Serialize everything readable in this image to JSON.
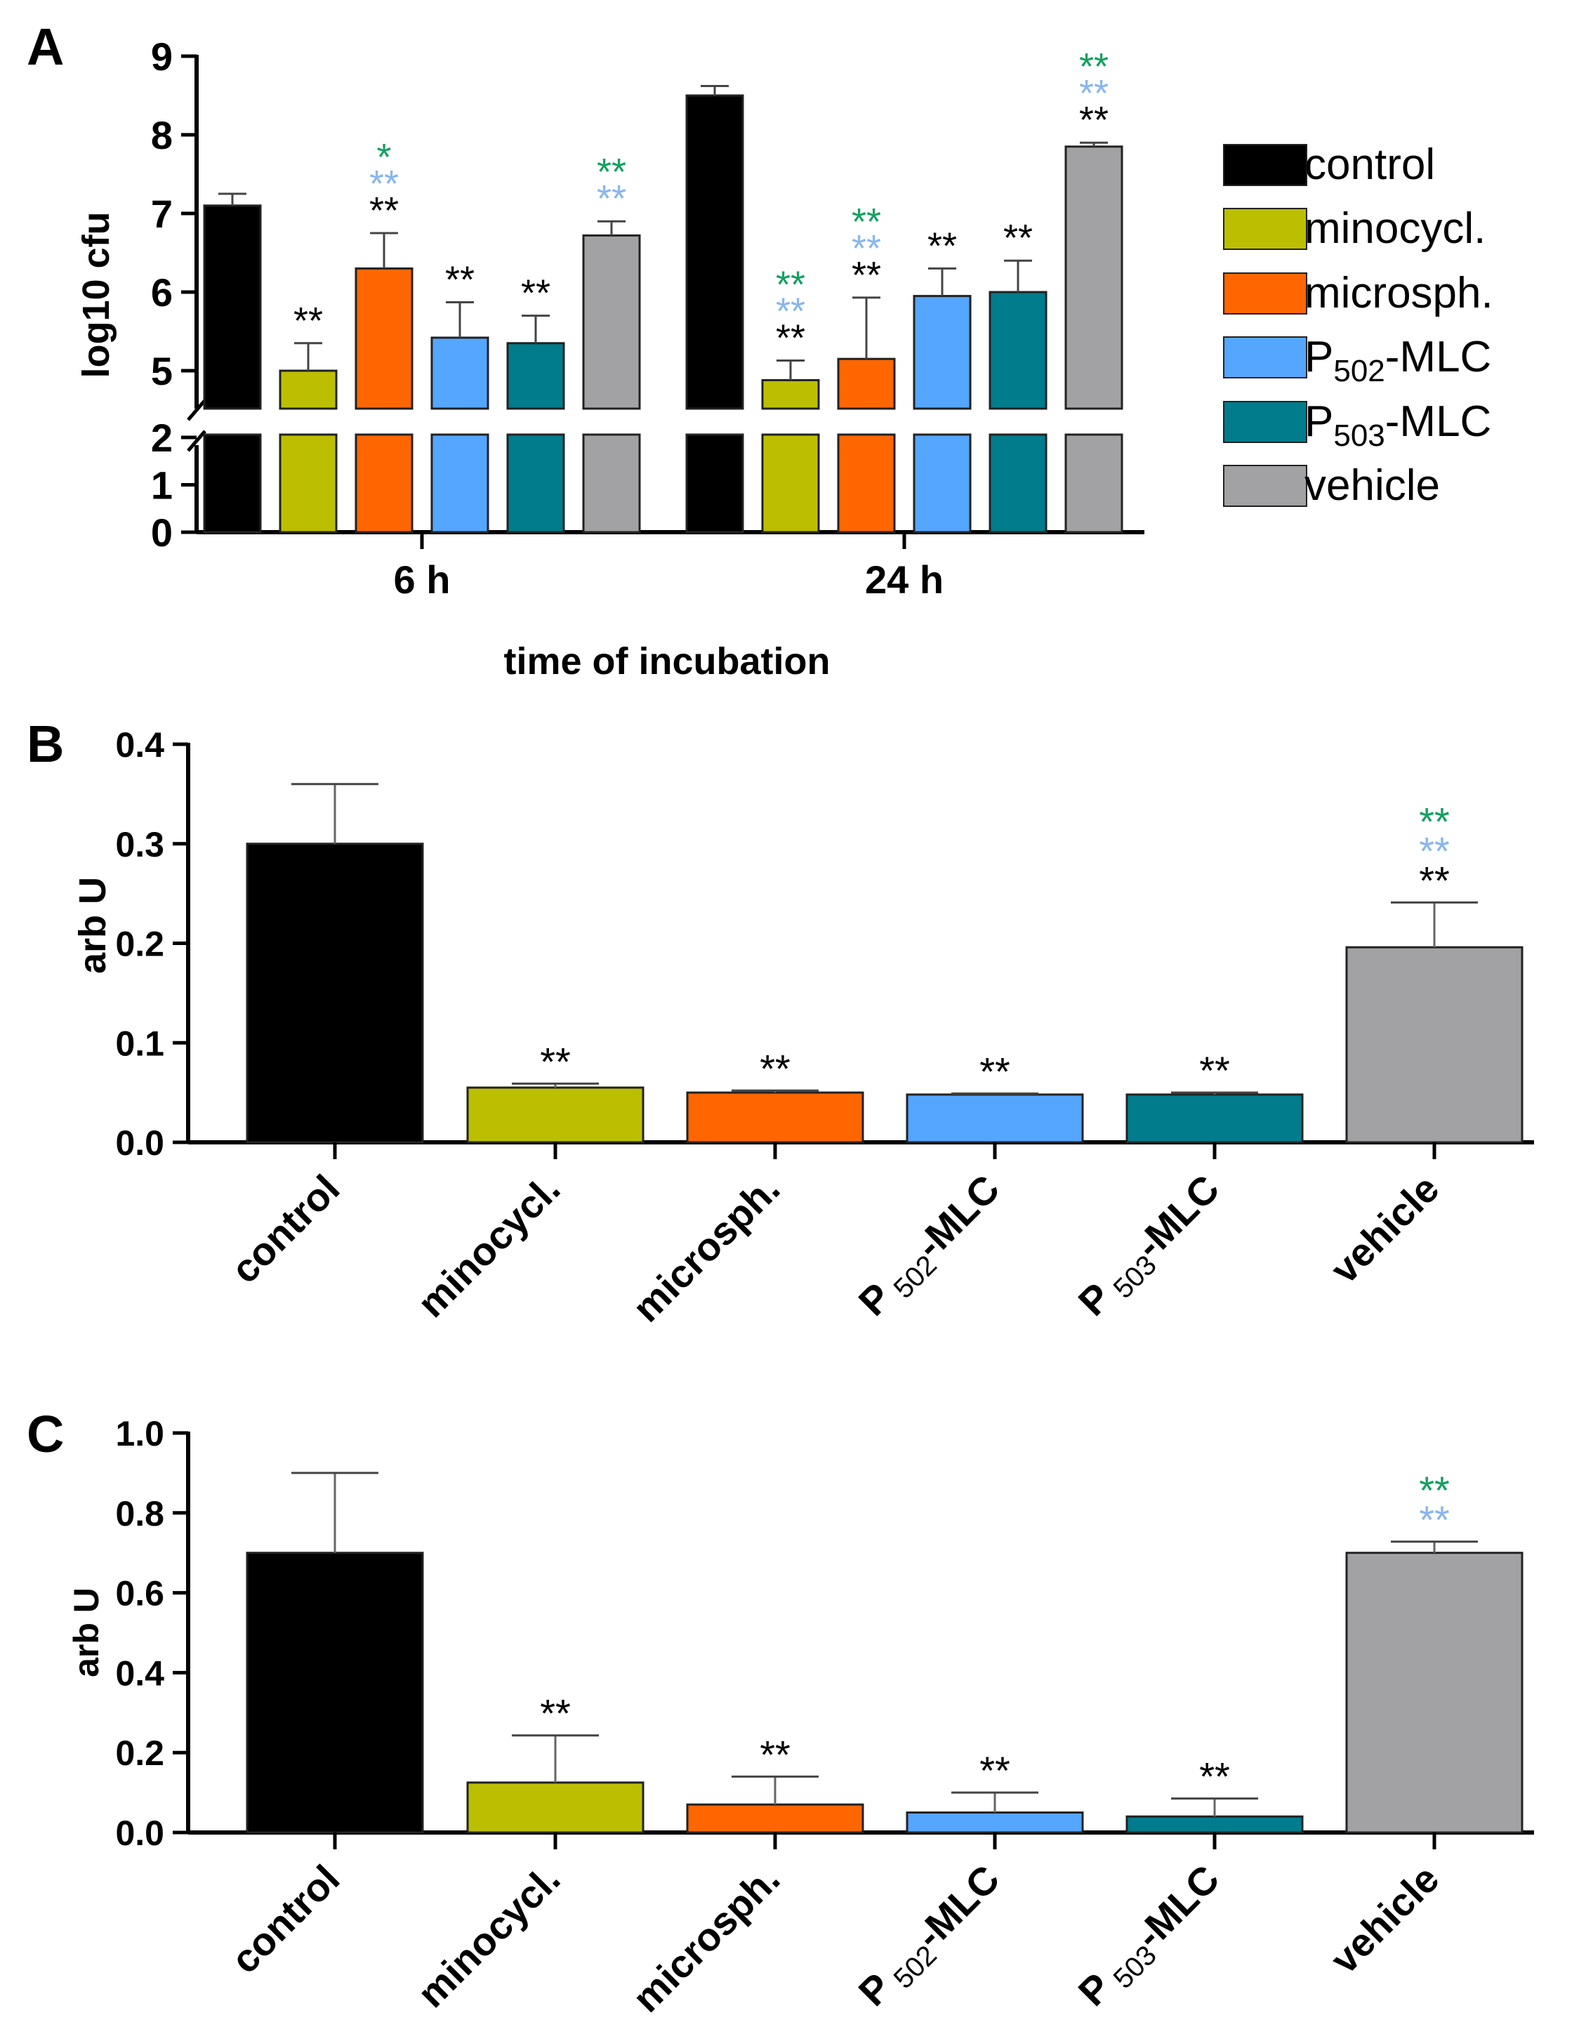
{
  "colors": {
    "control": "#000000",
    "minocycl": "#bcbf00",
    "microsph": "#ff6600",
    "p502": "#55a6ff",
    "p503": "#007c8c",
    "vehicle": "#a2a2a4",
    "star_black": "#000000",
    "star_blue": "#89b6ec",
    "star_green": "#13a060"
  },
  "legend": [
    {
      "label": "control",
      "color_key": "control"
    },
    {
      "label": "minocycl.",
      "color_key": "minocycl"
    },
    {
      "label": "microsph.",
      "color_key": "microsph"
    },
    {
      "label": "P",
      "sub": "502",
      "suffix": "-MLC",
      "color_key": "p502"
    },
    {
      "label": "P",
      "sub": "503",
      "suffix": "-MLC",
      "color_key": "p503"
    },
    {
      "label": "vehicle",
      "color_key": "vehicle"
    }
  ],
  "chart_data": [
    {
      "panel": "A",
      "type": "bar",
      "ylabel": "log10 cfu",
      "xlabel": "time of incubation",
      "categories": [
        "6 h",
        "24 h"
      ],
      "y_axis_break": {
        "lower": [
          0,
          2
        ],
        "upper": [
          4.5,
          9
        ]
      },
      "yticks_lower": [
        "0",
        "1",
        "2"
      ],
      "yticks_upper": [
        "5",
        "6",
        "7",
        "8",
        "9"
      ],
      "series": [
        {
          "name": "control",
          "color_key": "control",
          "values": [
            7.1,
            8.5
          ],
          "errors": [
            0.15,
            0.12
          ],
          "stars": [
            [],
            []
          ]
        },
        {
          "name": "minocycl.",
          "color_key": "minocycl",
          "values": [
            5.0,
            4.88
          ],
          "errors": [
            0.35,
            0.25
          ],
          "stars": [
            [
              "star_black"
            ],
            [
              "star_green",
              "star_blue",
              "star_black"
            ]
          ]
        },
        {
          "name": "microsph.",
          "color_key": "microsph",
          "values": [
            6.3,
            5.15
          ],
          "errors": [
            0.45,
            0.78
          ],
          "stars": [
            [
              "star_green",
              "star_blue",
              "star_black"
            ],
            [
              "star_green",
              "star_blue",
              "star_black"
            ]
          ]
        },
        {
          "name": "P502-MLC",
          "color_key": "p502",
          "values": [
            5.42,
            5.95
          ],
          "errors": [
            0.45,
            0.35
          ],
          "stars": [
            [
              "star_black"
            ],
            [
              "star_black"
            ]
          ]
        },
        {
          "name": "P503-MLC",
          "color_key": "p503",
          "values": [
            5.35,
            6.0
          ],
          "errors": [
            0.35,
            0.4
          ],
          "stars": [
            [
              "star_black"
            ],
            [
              "star_black"
            ]
          ]
        },
        {
          "name": "vehicle",
          "color_key": "vehicle",
          "values": [
            6.72,
            7.85
          ],
          "errors": [
            0.18,
            0.05
          ],
          "stars": [
            [
              "star_green",
              "star_blue"
            ],
            [
              "star_green",
              "star_blue",
              "star_black"
            ]
          ]
        }
      ],
      "star_text": {
        "6h_microsph_green": "*",
        "default": "**"
      }
    },
    {
      "panel": "B",
      "type": "bar",
      "ylabel": "arb U",
      "ylim": [
        0,
        0.4
      ],
      "yticks": [
        "0.0",
        "0.1",
        "0.2",
        "0.3",
        "0.4"
      ],
      "categories": [
        "control",
        "minocycl.",
        "microsph.",
        "P502-MLC",
        "P503-MLC",
        "vehicle"
      ],
      "values": [
        0.3,
        0.055,
        0.05,
        0.048,
        0.048,
        0.196
      ],
      "errors": [
        0.06,
        0.004,
        0.002,
        0.001,
        0.002,
        0.045
      ],
      "stars": [
        [],
        [
          "star_black"
        ],
        [
          "star_black"
        ],
        [
          "star_black"
        ],
        [
          "star_black"
        ],
        [
          "star_green",
          "star_blue",
          "star_black"
        ]
      ]
    },
    {
      "panel": "C",
      "type": "bar",
      "ylabel": "arb U",
      "ylim": [
        0,
        1.0
      ],
      "yticks": [
        "0.0",
        "0.2",
        "0.4",
        "0.6",
        "0.8",
        "1.0"
      ],
      "categories": [
        "control",
        "minocycl.",
        "microsph.",
        "P502-MLC",
        "P503-MLC",
        "vehicle"
      ],
      "values": [
        0.7,
        0.125,
        0.07,
        0.05,
        0.04,
        0.7
      ],
      "errors": [
        0.2,
        0.118,
        0.07,
        0.05,
        0.045,
        0.028
      ],
      "stars": [
        [],
        [
          "star_black"
        ],
        [
          "star_black"
        ],
        [
          "star_black"
        ],
        [
          "star_black"
        ],
        [
          "star_green",
          "star_blue"
        ]
      ]
    }
  ],
  "labels": {
    "panel_a": "A",
    "panel_b": "B",
    "panel_c": "C",
    "star": "**",
    "single_star": "*",
    "cat_control": "control",
    "cat_minocycl": "minocycl.",
    "cat_microsph": "microsph.",
    "cat_p": "P",
    "cat_502": "502",
    "cat_503": "503",
    "cat_mlc": "-MLC",
    "cat_vehicle": "vehicle"
  }
}
